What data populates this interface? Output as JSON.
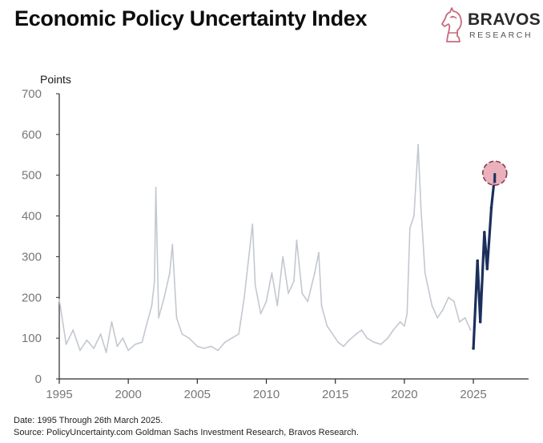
{
  "header": {
    "title": "Economic Policy Uncertainty Index"
  },
  "logo": {
    "name": "BRAVOS",
    "sub": "RESEARCH",
    "icon": "knight-chess-piece-icon",
    "color": "#c96a7c"
  },
  "footer": {
    "date_note": "Date: 1995 Through 26th March 2025.",
    "source_note": "Source: PolicyUncertainty.com Goldman Sachs Investment Research, Bravos Research."
  },
  "chart_data": {
    "type": "line",
    "ylabel": "Points",
    "xlabel": "",
    "ylim": [
      0,
      700
    ],
    "xlim": [
      1995,
      2029
    ],
    "yticks": [
      0,
      100,
      200,
      300,
      400,
      500,
      600,
      700
    ],
    "xticks": [
      1995,
      2000,
      2005,
      2010,
      2015,
      2020,
      2025
    ],
    "grid": false,
    "colors": {
      "history": "#c3c8d0",
      "recent": "#1c2f5c",
      "highlight_fill": "#e6a3b0",
      "highlight_stroke": "#8b3a4e"
    },
    "series": [
      {
        "role": "history",
        "x": [
          1995.0,
          1995.5,
          1996.0,
          1996.5,
          1997.0,
          1997.5,
          1998.0,
          1998.4,
          1998.8,
          1999.2,
          1999.6,
          2000.0,
          2000.5,
          2001.0,
          2001.3,
          2001.7,
          2001.9,
          2002.0,
          2002.2,
          2002.6,
          2003.0,
          2003.2,
          2003.5,
          2003.9,
          2004.4,
          2005.0,
          2005.5,
          2006.0,
          2006.5,
          2007.0,
          2007.5,
          2008.0,
          2008.4,
          2008.8,
          2009.0,
          2009.2,
          2009.6,
          2010.0,
          2010.4,
          2010.8,
          2011.2,
          2011.6,
          2012.0,
          2012.2,
          2012.6,
          2013.0,
          2013.5,
          2013.8,
          2014.0,
          2014.4,
          2014.8,
          2015.2,
          2015.6,
          2016.0,
          2016.5,
          2016.9,
          2017.3,
          2017.8,
          2018.3,
          2018.8,
          2019.2,
          2019.7,
          2020.0,
          2020.2,
          2020.4,
          2020.7,
          2021.0,
          2021.2,
          2021.5,
          2022.0,
          2022.4,
          2022.8,
          2023.2,
          2023.6,
          2024.0,
          2024.4,
          2024.8
        ],
        "y": [
          195,
          85,
          120,
          70,
          95,
          75,
          110,
          65,
          140,
          80,
          100,
          70,
          85,
          90,
          130,
          180,
          240,
          470,
          150,
          200,
          260,
          330,
          150,
          110,
          100,
          80,
          75,
          80,
          70,
          90,
          100,
          110,
          200,
          320,
          380,
          230,
          160,
          190,
          260,
          180,
          300,
          210,
          240,
          340,
          210,
          190,
          260,
          310,
          180,
          130,
          110,
          90,
          80,
          95,
          110,
          120,
          100,
          90,
          85,
          100,
          120,
          140,
          130,
          160,
          370,
          400,
          575,
          420,
          260,
          180,
          150,
          170,
          200,
          190,
          140,
          150,
          120
        ]
      },
      {
        "role": "recent",
        "x": [
          2025.0,
          2025.3,
          2025.5,
          2025.8,
          2026.0,
          2026.3,
          2026.55
        ],
        "y": [
          75,
          290,
          140,
          360,
          270,
          420,
          500
        ]
      }
    ],
    "highlight": {
      "x": 2026.55,
      "y": 505
    }
  }
}
